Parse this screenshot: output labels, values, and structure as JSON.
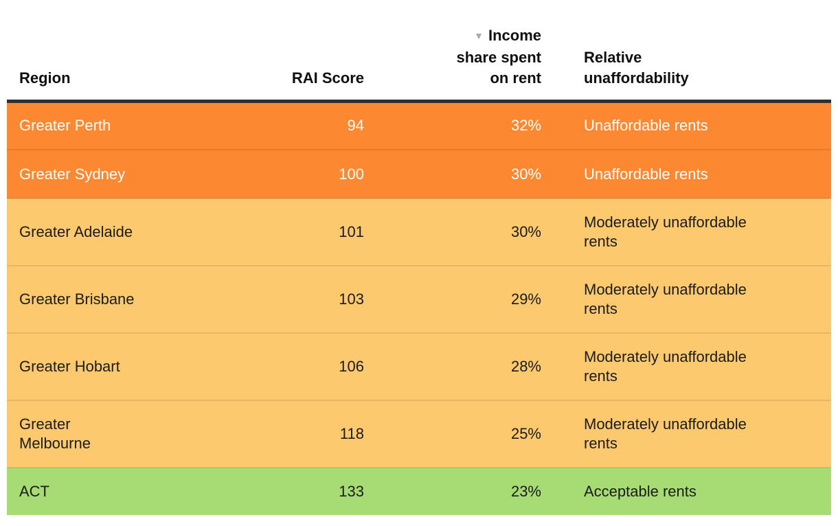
{
  "table": {
    "headers": {
      "region": "Region",
      "rai_score": "RAI Score",
      "income": {
        "sort_icon": "▼",
        "line1": "Income",
        "line2": "share spent",
        "line3": "on rent"
      },
      "relative": {
        "line1": "Relative",
        "line2": "unaffordability"
      }
    },
    "rows": [
      {
        "region": "Greater Perth",
        "rai_score": "94",
        "income_share": "32%",
        "relative": "Unaffordable rents",
        "category": "unaffordable"
      },
      {
        "region": "Greater Sydney",
        "rai_score": "100",
        "income_share": "30%",
        "relative": "Unaffordable rents",
        "category": "unaffordable"
      },
      {
        "region": "Greater Adelaide",
        "rai_score": "101",
        "income_share": "30%",
        "relative": "Moderately unaffordable\nrents",
        "category": "moderate"
      },
      {
        "region": "Greater Brisbane",
        "rai_score": "103",
        "income_share": "29%",
        "relative": "Moderately unaffordable\nrents",
        "category": "moderate"
      },
      {
        "region": "Greater Hobart",
        "rai_score": "106",
        "income_share": "28%",
        "relative": "Moderately unaffordable\nrents",
        "category": "moderate"
      },
      {
        "region": "Greater\nMelbourne",
        "rai_score": "118",
        "income_share": "25%",
        "relative": "Moderately unaffordable\nrents",
        "category": "moderate"
      },
      {
        "region": "ACT",
        "rai_score": "133",
        "income_share": "23%",
        "relative": "Acceptable rents",
        "category": "acceptable"
      }
    ],
    "colors": {
      "unaffordable": "#FC8931",
      "moderate": "#FDC96E",
      "acceptable": "#A7DC74",
      "header_border": "#2F2F2F",
      "sort_icon": "#ABABAB",
      "text_light": "#FFFFFF",
      "text_dark": "#1B1B1B"
    }
  },
  "chart_data": {
    "type": "table",
    "columns": [
      "Region",
      "RAI Score",
      "Income share spent on rent",
      "Relative unaffordability"
    ],
    "rows": [
      [
        "Greater Perth",
        94,
        "32%",
        "Unaffordable rents"
      ],
      [
        "Greater Sydney",
        100,
        "30%",
        "Unaffordable rents"
      ],
      [
        "Greater Adelaide",
        101,
        "30%",
        "Moderately unaffordable rents"
      ],
      [
        "Greater Brisbane",
        103,
        "29%",
        "Moderately unaffordable rents"
      ],
      [
        "Greater Hobart",
        106,
        "28%",
        "Moderately unaffordable rents"
      ],
      [
        "Greater Melbourne",
        118,
        "25%",
        "Moderately unaffordable rents"
      ],
      [
        "ACT",
        133,
        "23%",
        "Acceptable rents"
      ]
    ],
    "sort": {
      "column": "Income share spent on rent",
      "direction": "desc"
    },
    "row_categories": [
      "unaffordable",
      "unaffordable",
      "moderate",
      "moderate",
      "moderate",
      "moderate",
      "acceptable"
    ],
    "category_colors": {
      "unaffordable": "#FC8931",
      "moderate": "#FDC96E",
      "acceptable": "#A7DC74"
    },
    "legend_meaning": {
      "unaffordable": "Unaffordable rents",
      "moderate": "Moderately unaffordable rents",
      "acceptable": "Acceptable rents"
    }
  }
}
